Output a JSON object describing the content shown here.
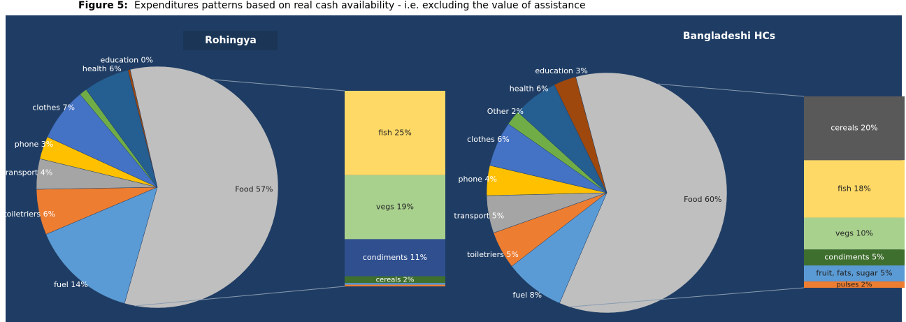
{
  "caption": {
    "label": "Figure 5:",
    "text": "Expenditures patterns based on real cash availability - i.e. excluding the value of assistance"
  },
  "chart_data": [
    {
      "type": "pie",
      "title": "Rohingya",
      "value_labels": [
        "Food 57%",
        "fuel 14%",
        "toiletriers 6%",
        "transport 4%",
        "phone 3%",
        "clothes 7%",
        null,
        "health 6%",
        "education 0%"
      ],
      "values": [
        57,
        14,
        6,
        4,
        3,
        7,
        1,
        6,
        0.3
      ],
      "colors": [
        "#bfbfbf",
        "#5b9bd5",
        "#ed7d31",
        "#a5a5a5",
        "#ffc000",
        "#4472c4",
        "#70ad47",
        "#255e91",
        "#9e480e"
      ],
      "bar": {
        "value_labels": [
          "fish 25%",
          "vegs 19%",
          "condiments 11%",
          "cereals 2%",
          null,
          null
        ],
        "values": [
          25,
          19,
          11,
          2,
          0.5,
          0.5
        ],
        "colors": [
          "#ffd966",
          "#a9d18e",
          "#2f4f8f",
          "#3f6f2e",
          "#5b9bd5",
          "#ed7d31"
        ]
      }
    },
    {
      "type": "pie",
      "title": "Bangladeshi HCs",
      "value_labels": [
        "Food 60%",
        "fuel 8%",
        "toiletriers 5%",
        "transport 5%",
        "phone 4%",
        "clothes 6%",
        "Other 2%",
        "health 6%",
        "education 3%"
      ],
      "values": [
        60,
        8,
        5,
        5,
        4,
        6,
        2,
        6,
        3
      ],
      "colors": [
        "#bfbfbf",
        "#5b9bd5",
        "#ed7d31",
        "#a5a5a5",
        "#ffc000",
        "#4472c4",
        "#70ad47",
        "#255e91",
        "#9e480e"
      ],
      "bar": {
        "value_labels": [
          "cereals 20%",
          "fish 18%",
          "vegs 10%",
          "condiments 5%",
          "fruit, fats, sugar 5%",
          "pulses 2%"
        ],
        "values": [
          20,
          18,
          10,
          5,
          5,
          2
        ],
        "colors": [
          "#595959",
          "#ffd966",
          "#a9d18e",
          "#3f6f2e",
          "#5b9bd5",
          "#ed7d31"
        ]
      }
    }
  ]
}
